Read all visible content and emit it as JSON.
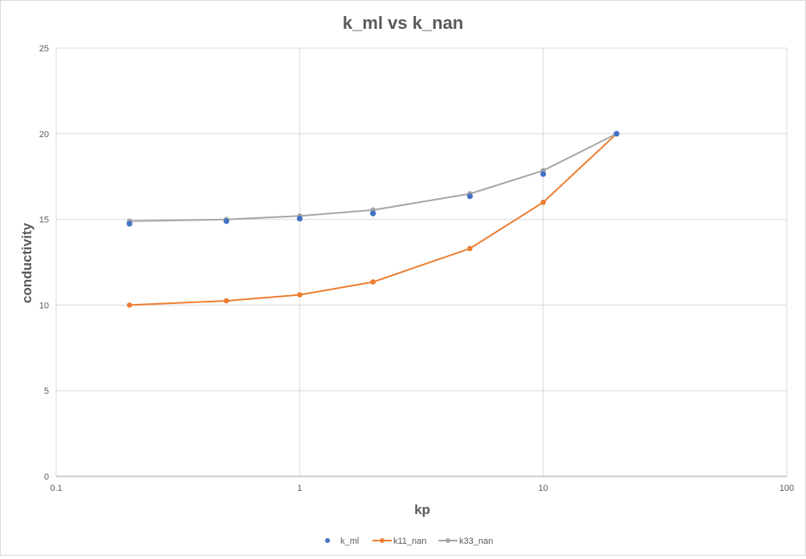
{
  "chart_data": {
    "type": "scatter",
    "title": "k_ml vs k_nan",
    "xlabel": "kp",
    "ylabel": "conductivity",
    "x_scale": "log",
    "xlim": [
      0.1,
      100
    ],
    "ylim": [
      0,
      25
    ],
    "x_ticks": [
      "0.1",
      "1",
      "10",
      "100"
    ],
    "y_ticks": [
      "0",
      "5",
      "10",
      "15",
      "20",
      "25"
    ],
    "grid": true,
    "legend_position": "bottom",
    "series": [
      {
        "name": "k_ml",
        "style": "markers",
        "color": "#4472C4",
        "x": [
          0.2,
          0.5,
          1,
          2,
          5,
          10,
          20
        ],
        "y": [
          14.75,
          14.9,
          15.05,
          15.35,
          16.35,
          17.65,
          20.0
        ]
      },
      {
        "name": "k11_nan",
        "style": "line-markers",
        "color": "#ED7D31",
        "x": [
          0.2,
          0.5,
          1,
          2,
          5,
          10,
          20
        ],
        "y": [
          10.0,
          10.25,
          10.6,
          11.35,
          13.3,
          16.0,
          20.0
        ]
      },
      {
        "name": "k33_nan",
        "style": "line-markers",
        "color": "#A5A5A5",
        "x": [
          0.2,
          0.5,
          1,
          2,
          5,
          10,
          20
        ],
        "y": [
          14.9,
          15.0,
          15.2,
          15.55,
          16.5,
          17.85,
          20.0
        ]
      }
    ]
  }
}
